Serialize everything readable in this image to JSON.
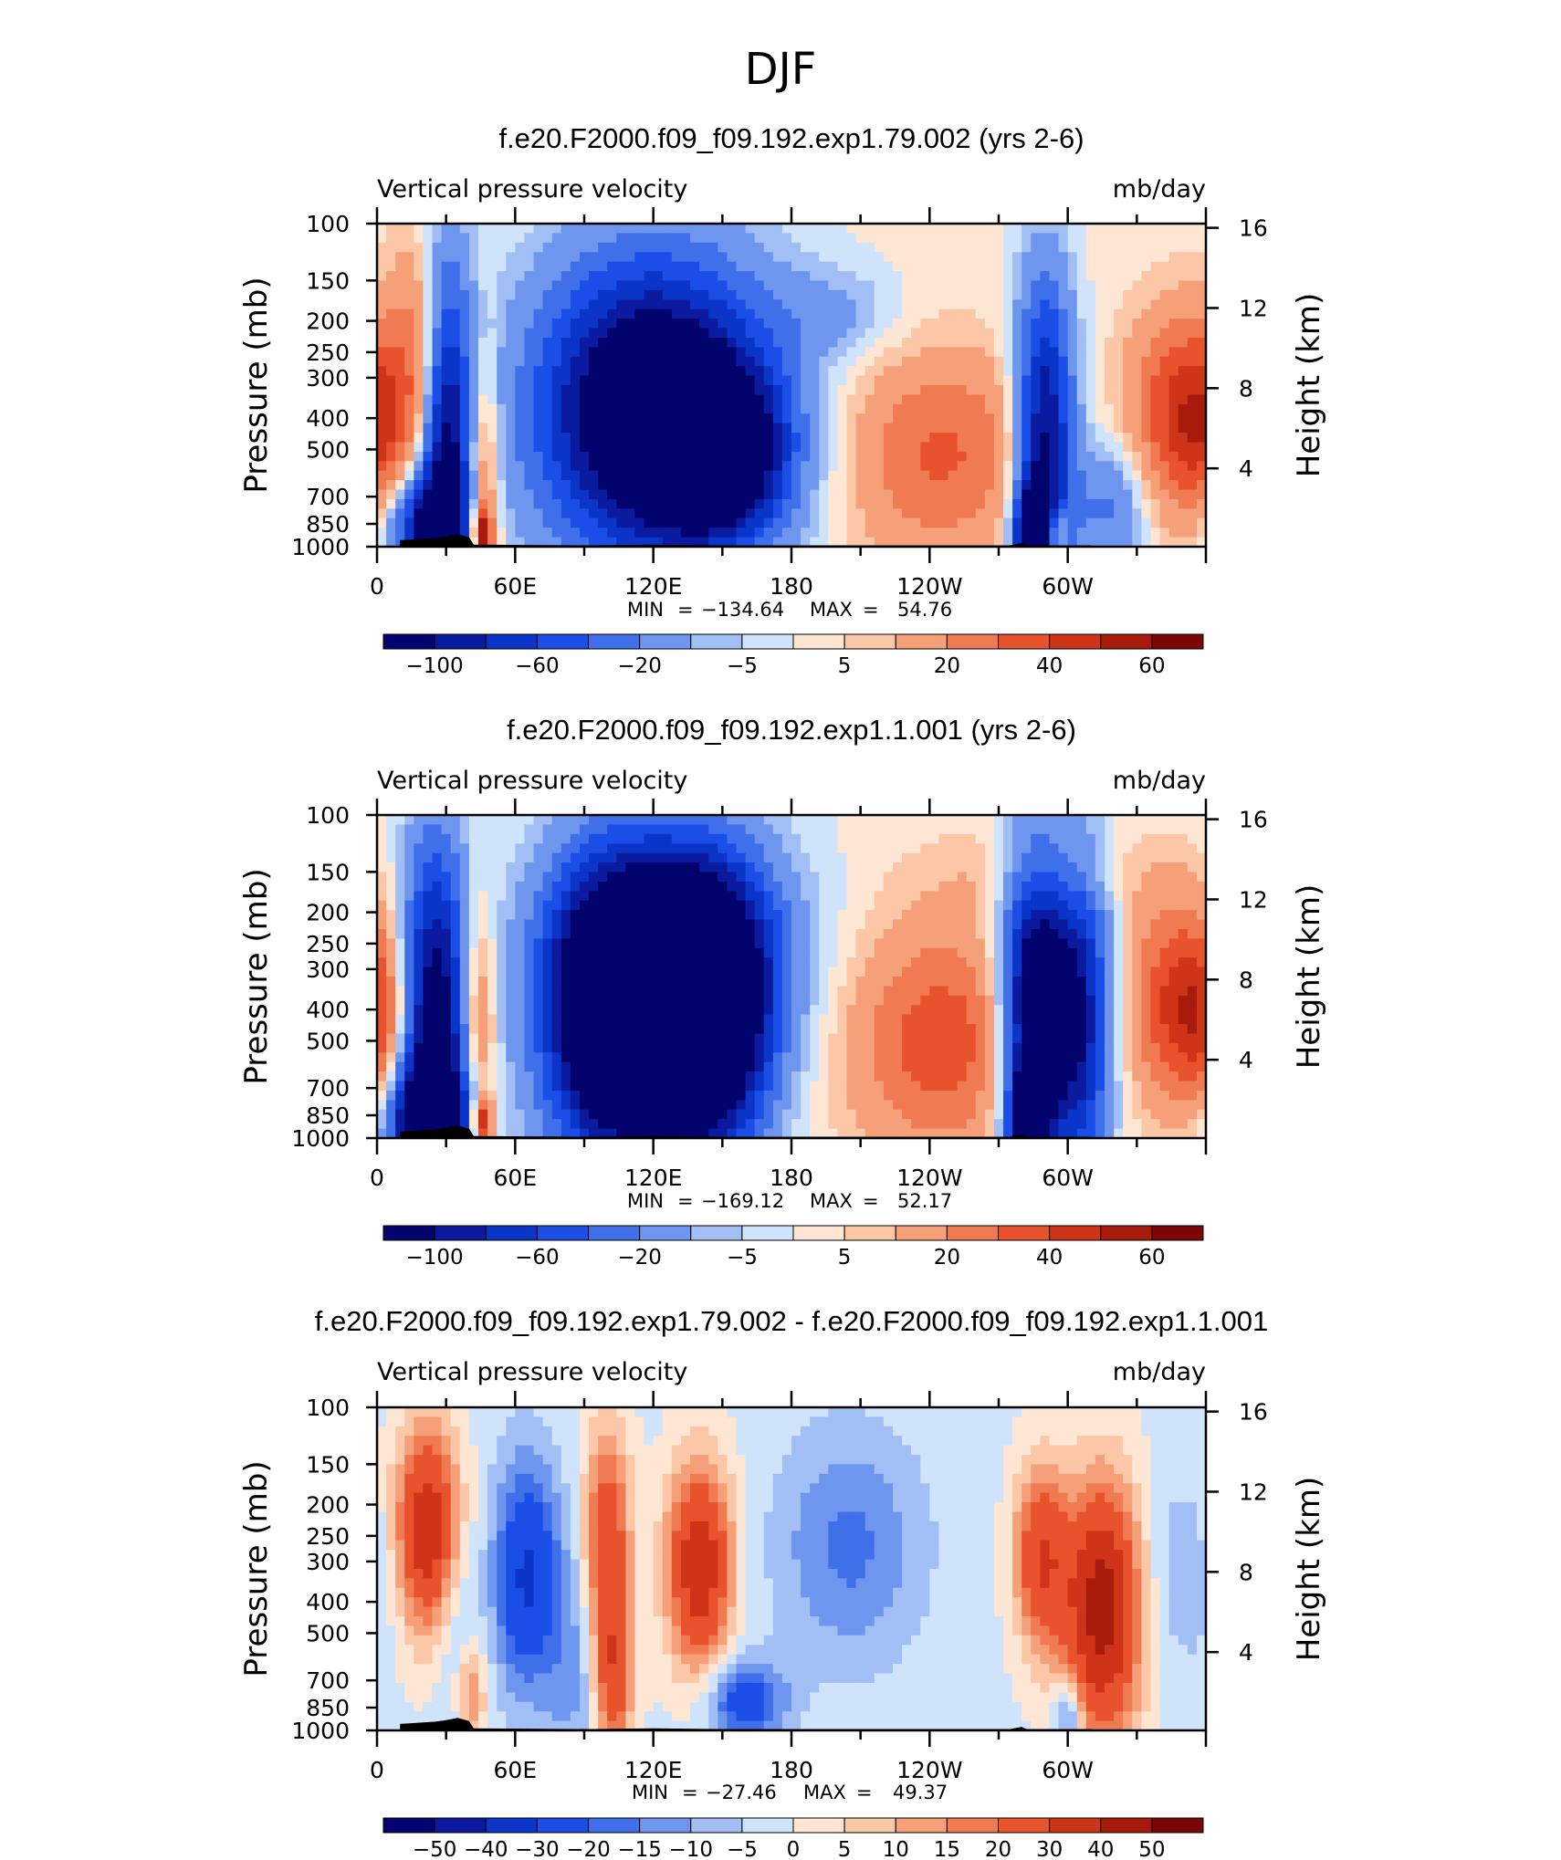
{
  "page_title": "DJF",
  "colors": {
    "blue_dark": "#00008b",
    "blue_mid": "#2255e6",
    "blue_light": "#cfe6fb",
    "red_light": "#fde0cc",
    "red_mid": "#f26a3c",
    "red_dark": "#7a0000",
    "land": "#000000"
  },
  "chart_data": [
    {
      "type": "heatmap",
      "title": "f.e20.F2000.f09_f09.192.exp1.79.002 (yrs 2-6)",
      "subtitle_left": "Vertical pressure velocity",
      "subtitle_right": "mb/day",
      "ylabel": "Pressure (mb)",
      "ylabel_right": "Height (km)",
      "yticks": [
        "100",
        "150",
        "200",
        "250",
        "300",
        "400",
        "500",
        "700",
        "850",
        "1000"
      ],
      "yticks_right": [
        "16",
        "12",
        "8",
        "4"
      ],
      "xticks": [
        "0",
        "60E",
        "120E",
        "180",
        "120W",
        "60W"
      ],
      "stats": {
        "min_label": "MIN",
        "min": "−134.64",
        "max_label": "MAX",
        "max": "54.76"
      },
      "colorbar_labels": [
        "−100",
        "−60",
        "−20",
        "−5",
        "5",
        "20",
        "40",
        "60"
      ],
      "features": [
        {
          "lon": 0,
          "p": 420,
          "v": 30,
          "dlon": 12,
          "dlogp": 0.4
        },
        {
          "lon": 20,
          "p": 250,
          "v": 28,
          "dlon": 10,
          "dlogp": 0.5
        },
        {
          "lon": 30,
          "p": 450,
          "v": -70,
          "dlon": 8,
          "dlogp": 0.8
        },
        {
          "lon": 22,
          "p": 900,
          "v": -60,
          "dlon": 12,
          "dlogp": 0.25
        },
        {
          "lon": 46,
          "p": 700,
          "v": 30,
          "dlon": 5,
          "dlogp": 0.6
        },
        {
          "lon": 46,
          "p": 900,
          "v": 50,
          "dlon": 3,
          "dlogp": 0.1
        },
        {
          "lon": 120,
          "p": 380,
          "v": -95,
          "dlon": 35,
          "dlogp": 0.65
        },
        {
          "lon": 150,
          "p": 520,
          "v": -60,
          "dlon": 20,
          "dlogp": 0.35
        },
        {
          "lon": 200,
          "p": 190,
          "v": -12,
          "dlon": 20,
          "dlogp": 0.2
        },
        {
          "lon": 245,
          "p": 520,
          "v": 30,
          "dlon": 30,
          "dlogp": 0.45
        },
        {
          "lon": 290,
          "p": 480,
          "v": -70,
          "dlon": 9,
          "dlogp": 0.7
        },
        {
          "lon": 285,
          "p": 900,
          "v": -90,
          "dlon": 5,
          "dlogp": 0.2
        },
        {
          "lon": 295,
          "p": 900,
          "v": 40,
          "dlon": 3,
          "dlogp": 0.1
        },
        {
          "lon": 318,
          "p": 750,
          "v": -25,
          "dlon": 12,
          "dlogp": 0.3
        },
        {
          "lon": 345,
          "p": 380,
          "v": 30,
          "dlon": 15,
          "dlogp": 0.45
        }
      ]
    },
    {
      "type": "heatmap",
      "title": "f.e20.F2000.f09_f09.192.exp1.1.001 (yrs 2-6)",
      "subtitle_left": "Vertical pressure velocity",
      "subtitle_right": "mb/day",
      "ylabel": "Pressure (mb)",
      "ylabel_right": "Height (km)",
      "yticks": [
        "100",
        "150",
        "200",
        "250",
        "300",
        "400",
        "500",
        "700",
        "850",
        "1000"
      ],
      "yticks_right": [
        "16",
        "12",
        "8",
        "4"
      ],
      "xticks": [
        "0",
        "60E",
        "120E",
        "180",
        "120W",
        "60W"
      ],
      "stats": {
        "min_label": "MIN",
        "min": "−169.12",
        "max_label": "MAX",
        "max": "52.17"
      },
      "colorbar_labels": [
        "−100",
        "−60",
        "−20",
        "−5",
        "5",
        "20",
        "40",
        "60"
      ],
      "features": [
        {
          "lon": 0,
          "p": 420,
          "v": 28,
          "dlon": 10,
          "dlogp": 0.4
        },
        {
          "lon": 25,
          "p": 450,
          "v": -75,
          "dlon": 10,
          "dlogp": 0.8
        },
        {
          "lon": 22,
          "p": 900,
          "v": -70,
          "dlon": 12,
          "dlogp": 0.25
        },
        {
          "lon": 44,
          "p": 450,
          "v": 28,
          "dlon": 5,
          "dlogp": 0.5
        },
        {
          "lon": 46,
          "p": 900,
          "v": 50,
          "dlon": 3,
          "dlogp": 0.1
        },
        {
          "lon": 105,
          "p": 420,
          "v": -105,
          "dlon": 22,
          "dlogp": 0.65
        },
        {
          "lon": 145,
          "p": 420,
          "v": -95,
          "dlon": 18,
          "dlogp": 0.6
        },
        {
          "lon": 130,
          "p": 260,
          "v": -40,
          "dlon": 35,
          "dlogp": 0.5
        },
        {
          "lon": 245,
          "p": 500,
          "v": 35,
          "dlon": 28,
          "dlogp": 0.5
        },
        {
          "lon": 285,
          "p": 420,
          "v": -85,
          "dlon": 10,
          "dlogp": 0.7
        },
        {
          "lon": 305,
          "p": 430,
          "v": -60,
          "dlon": 10,
          "dlogp": 0.7
        },
        {
          "lon": 283,
          "p": 900,
          "v": -90,
          "dlon": 5,
          "dlogp": 0.2
        },
        {
          "lon": 345,
          "p": 380,
          "v": 35,
          "dlon": 14,
          "dlogp": 0.45
        },
        {
          "lon": 290,
          "p": 150,
          "v": 8,
          "dlon": 35,
          "dlogp": 0.2
        }
      ]
    },
    {
      "type": "heatmap",
      "title": "f.e20.F2000.f09_f09.192.exp1.79.002 - f.e20.F2000.f09_f09.192.exp1.1.001",
      "subtitle_left": "Vertical pressure velocity",
      "subtitle_right": "mb/day",
      "ylabel": "Pressure (mb)",
      "ylabel_right": "Height (km)",
      "yticks": [
        "100",
        "150",
        "200",
        "250",
        "300",
        "400",
        "500",
        "700",
        "850",
        "1000"
      ],
      "yticks_right": [
        "16",
        "12",
        "8",
        "4"
      ],
      "xticks": [
        "0",
        "60E",
        "120E",
        "180",
        "120W",
        "60W"
      ],
      "stats": {
        "min_label": "MIN",
        "min": "−27.46",
        "max_label": "MAX",
        "max": "49.37"
      },
      "colorbar_labels": [
        "−50",
        "−40",
        "−30",
        "−20",
        "−15",
        "−10",
        "−5",
        "0",
        "5",
        "10",
        "15",
        "20",
        "30",
        "40",
        "50"
      ],
      "features": [
        {
          "lon": 22,
          "p": 240,
          "v": 40,
          "dlon": 10,
          "dlogp": 0.45
        },
        {
          "lon": 35,
          "p": 560,
          "v": -10,
          "dlon": 6,
          "dlogp": 0.6
        },
        {
          "lon": 40,
          "p": 780,
          "v": 20,
          "dlon": 5,
          "dlogp": 0.25
        },
        {
          "lon": 65,
          "p": 330,
          "v": -30,
          "dlon": 10,
          "dlogp": 0.5
        },
        {
          "lon": 100,
          "p": 260,
          "v": 30,
          "dlon": 7,
          "dlogp": 0.5
        },
        {
          "lon": 103,
          "p": 700,
          "v": 25,
          "dlon": 6,
          "dlogp": 0.35
        },
        {
          "lon": 85,
          "p": 650,
          "v": -10,
          "dlon": 8,
          "dlogp": 0.5
        },
        {
          "lon": 140,
          "p": 310,
          "v": 40,
          "dlon": 10,
          "dlogp": 0.45
        },
        {
          "lon": 160,
          "p": 820,
          "v": -25,
          "dlon": 12,
          "dlogp": 0.18
        },
        {
          "lon": 205,
          "p": 270,
          "v": -15,
          "dlon": 22,
          "dlogp": 0.5
        },
        {
          "lon": 288,
          "p": 290,
          "v": 30,
          "dlon": 8,
          "dlogp": 0.4
        },
        {
          "lon": 315,
          "p": 420,
          "v": 48,
          "dlon": 12,
          "dlogp": 0.55
        },
        {
          "lon": 300,
          "p": 880,
          "v": -20,
          "dlon": 4,
          "dlogp": 0.15
        },
        {
          "lon": 350,
          "p": 330,
          "v": -8,
          "dlon": 15,
          "dlogp": 0.4
        }
      ]
    }
  ],
  "land_profile": [
    [
      10,
      955
    ],
    [
      15,
      950
    ],
    [
      20,
      945
    ],
    [
      25,
      940
    ],
    [
      30,
      930
    ],
    [
      35,
      915
    ],
    [
      40,
      935
    ],
    [
      42,
      985
    ],
    [
      92,
      990
    ],
    [
      120,
      985
    ],
    [
      150,
      990
    ],
    [
      183,
      990
    ],
    [
      275,
      990
    ],
    [
      280,
      975
    ],
    [
      282,
      990
    ],
    [
      310,
      990
    ]
  ]
}
